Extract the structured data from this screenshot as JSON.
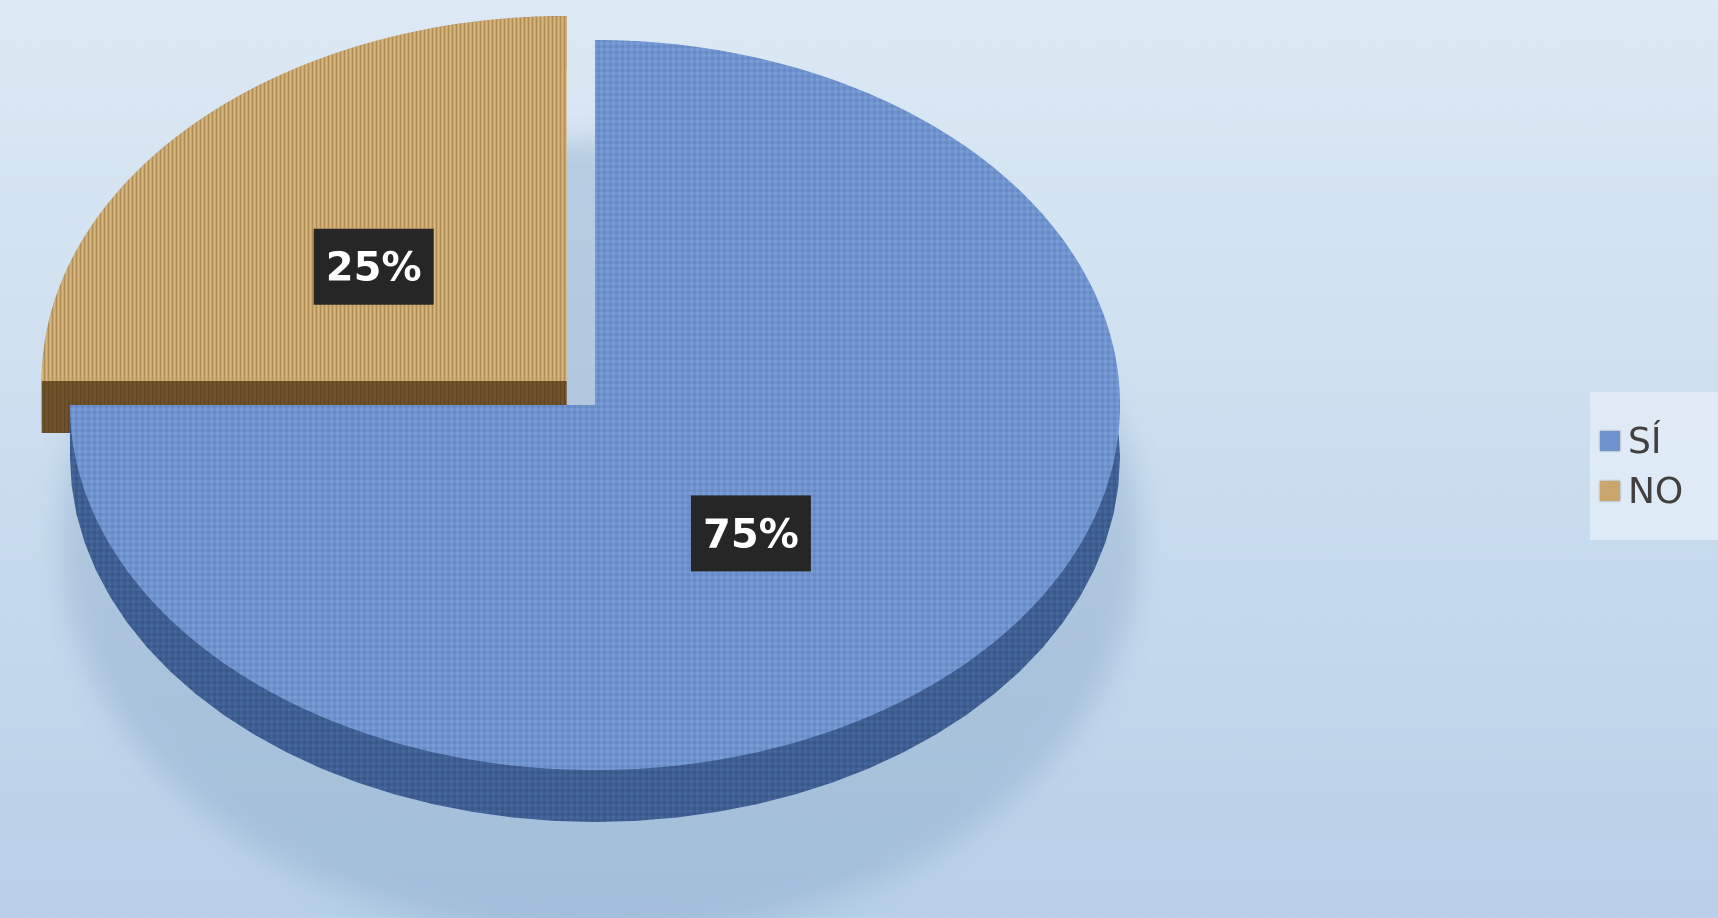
{
  "colors": {
    "si_top": "#6f93cf",
    "si_side": "#3f5f93",
    "no_top": "#caa56c",
    "no_side": "#6e5128"
  },
  "chart_data": {
    "type": "pie",
    "title": "",
    "slices": [
      {
        "label": "SÍ",
        "value": 75,
        "data_label": "75%",
        "color": "#6f93cf",
        "exploded": false
      },
      {
        "label": "NO",
        "value": 25,
        "data_label": "25%",
        "color": "#caa56c",
        "exploded": true
      }
    ],
    "legend": {
      "position": "right",
      "entries": [
        "SÍ",
        "NO"
      ]
    },
    "style": "3d-textured"
  }
}
